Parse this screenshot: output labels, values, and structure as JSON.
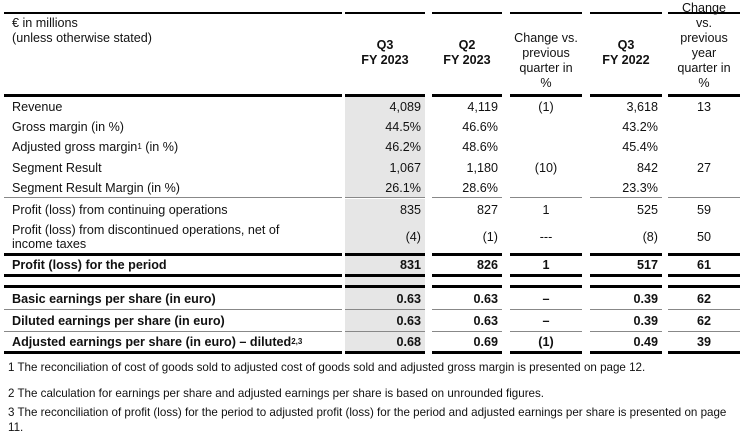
{
  "header": {
    "unit_line1": "€ in millions",
    "unit_line2": "(unless otherwise stated)",
    "columns": [
      {
        "line1": "Q3",
        "line2": "FY 2023"
      },
      {
        "line1": "Q2",
        "line2": "FY 2023"
      },
      {
        "line1": "Change vs. previous quarter in %"
      },
      {
        "line1": "Q3",
        "line2": "FY 2022"
      },
      {
        "line1": "Change vs. previous year quarter in %"
      }
    ]
  },
  "rows": [
    {
      "label": "Revenue",
      "values": [
        "4,089",
        "4,119",
        "(1)",
        "3,618",
        "13"
      ]
    },
    {
      "label": "Gross margin (in %)",
      "values": [
        "44.5%",
        "46.6%",
        "",
        "43.2%",
        ""
      ]
    },
    {
      "label": "Adjusted gross margin",
      "sup": "1",
      "label_suffix": " (in %)",
      "values": [
        "46.2%",
        "48.6%",
        "",
        "45.4%",
        ""
      ]
    },
    {
      "label": "Segment Result",
      "values": [
        "1,067",
        "1,180",
        "(10)",
        "842",
        "27"
      ]
    },
    {
      "label": "Segment Result Margin (in %)",
      "values": [
        "26.1%",
        "28.6%",
        "",
        "23.3%",
        ""
      ]
    },
    {
      "label": "Profit (loss) from continuing operations",
      "values": [
        "835",
        "827",
        "1",
        "525",
        "59"
      ]
    },
    {
      "label": "Profit (loss) from discontinued operations, net of income taxes",
      "values": [
        "(4)",
        "(1)",
        "---",
        "(8)",
        "50"
      ]
    },
    {
      "label": "Profit (loss) for the period",
      "bold": true,
      "values": [
        "831",
        "826",
        "1",
        "517",
        "61"
      ]
    },
    {
      "label": "",
      "values": [
        "",
        "",
        "",
        "",
        ""
      ]
    },
    {
      "label": "Basic earnings per share (in euro)",
      "bold": true,
      "values": [
        "0.63",
        "0.63",
        "–",
        "0.39",
        "62"
      ]
    },
    {
      "label": "Diluted earnings per share (in euro)",
      "bold": true,
      "values": [
        "0.63",
        "0.63",
        "–",
        "0.39",
        "62"
      ]
    },
    {
      "label": "Adjusted earnings per share (in euro) – diluted",
      "sup": "2,3",
      "bold": true,
      "values": [
        "0.68",
        "0.69",
        "(1)",
        "0.49",
        "39"
      ]
    }
  ],
  "footnotes": [
    "1 The reconciliation of cost of goods sold to adjusted cost of goods sold and adjusted gross margin is presented on page 12.",
    "2 The calculation for earnings per share and adjusted earnings per share is based on unrounded figures.",
    "3 The reconciliation of profit (loss) for the period to adjusted profit (loss) for the period and adjusted earnings per share is presented on page 11."
  ]
}
